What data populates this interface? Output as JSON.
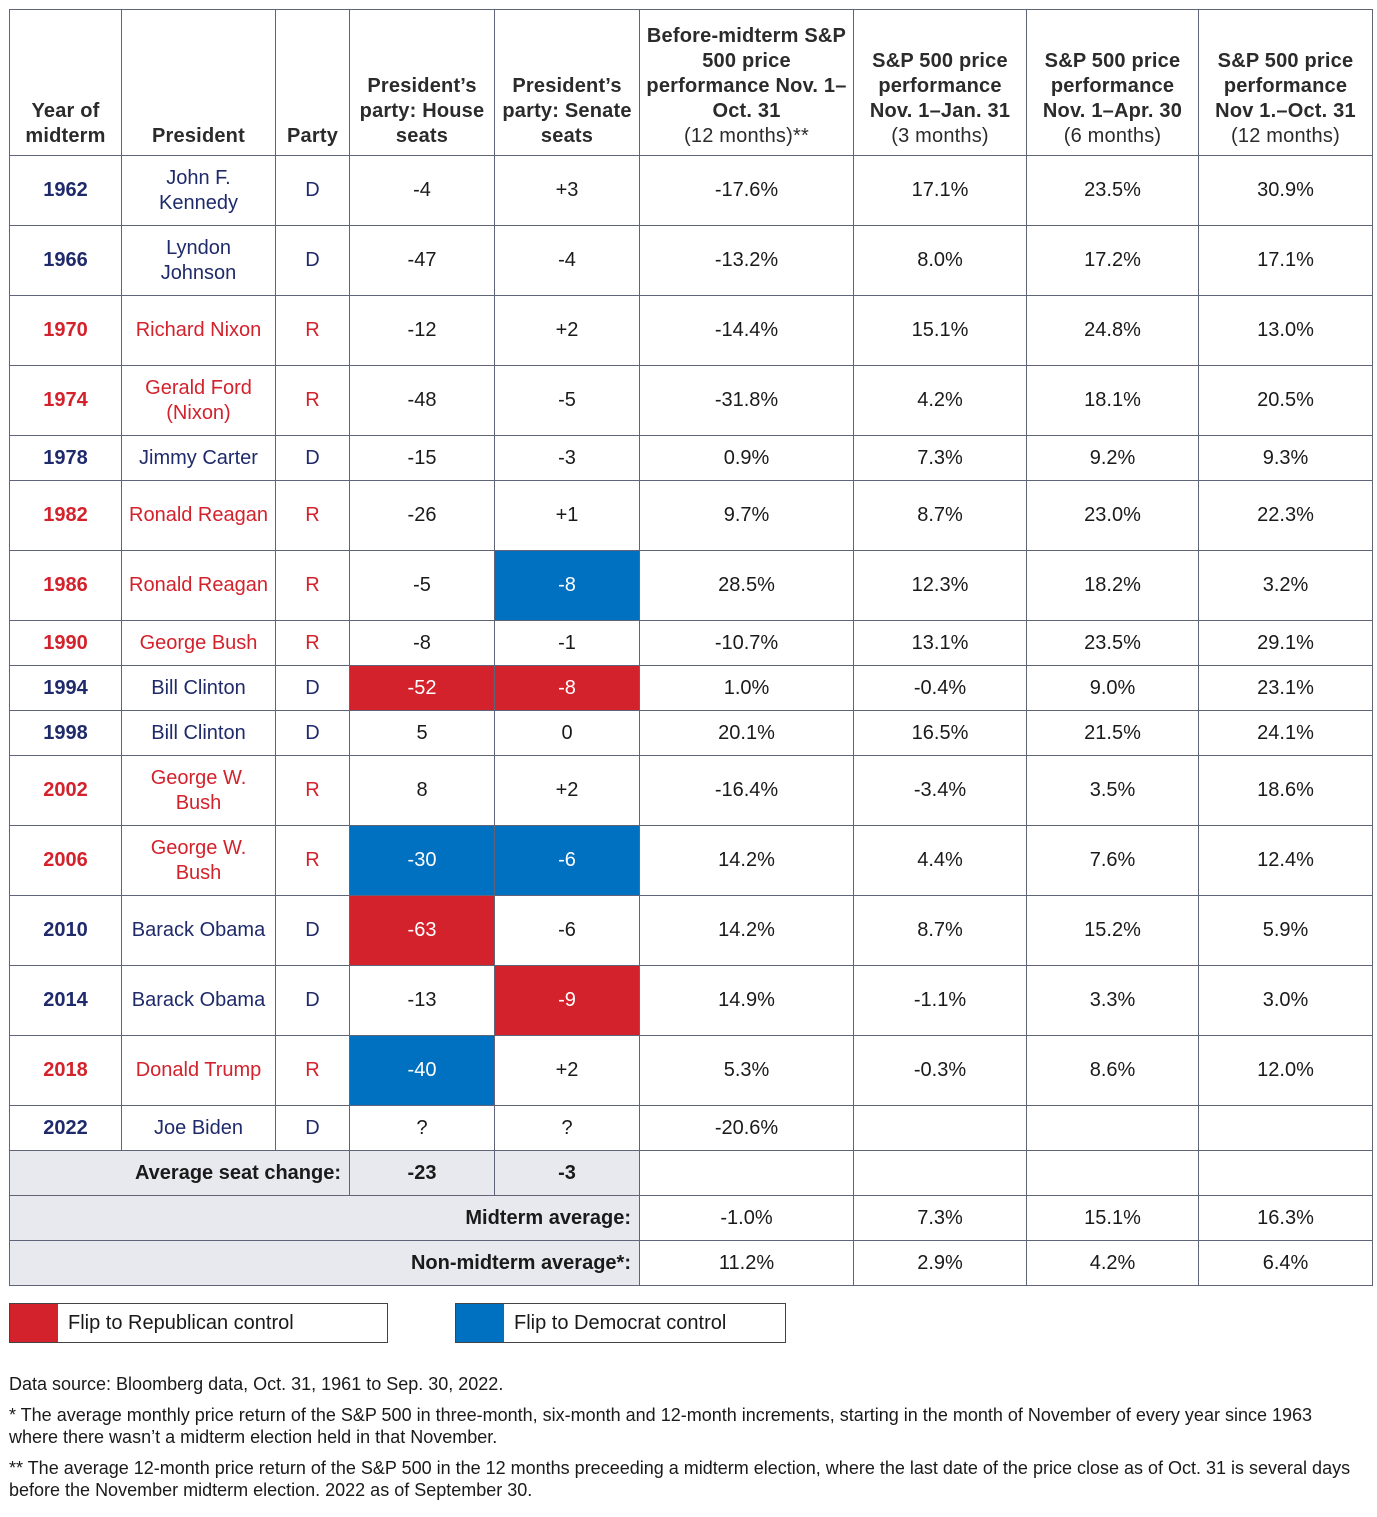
{
  "party_colors": {
    "D": "#1f2a6b",
    "R": "#d3222c"
  },
  "table": {
    "header": [
      {
        "title": "Year of midterm"
      },
      {
        "title": "President"
      },
      {
        "title": "Party"
      },
      {
        "title": "President’s party: House seats"
      },
      {
        "title": "President’s party: Senate seats"
      },
      {
        "title": "Before-midterm S&P 500 price performance Nov. 1–Oct. 31",
        "subtitle": "(12 months)**"
      },
      {
        "title": "S&P 500 price performance Nov. 1–Jan. 31",
        "subtitle": "(3 months)"
      },
      {
        "title": "S&P 500 price performance Nov. 1–Apr. 30",
        "subtitle": "(6 months)"
      },
      {
        "title": "S&P 500 price performance Nov 1.–Oct. 31",
        "subtitle": "(12 months)"
      }
    ],
    "rows": [
      {
        "year": "1962",
        "president": "John F. Kennedy",
        "party": "D",
        "house": "-4",
        "senate": "+3",
        "before": "-17.6%",
        "m3": "17.1%",
        "m6": "23.5%",
        "m12": "30.9%"
      },
      {
        "year": "1966",
        "president": "Lyndon Johnson",
        "party": "D",
        "house": "-47",
        "senate": "-4",
        "before": "-13.2%",
        "m3": "8.0%",
        "m6": "17.2%",
        "m12": "17.1%"
      },
      {
        "year": "1970",
        "president": "Richard Nixon",
        "party": "R",
        "house": "-12",
        "senate": "+2",
        "before": "-14.4%",
        "m3": "15.1%",
        "m6": "24.8%",
        "m12": "13.0%"
      },
      {
        "year": "1974",
        "president": "Gerald Ford (Nixon)",
        "party": "R",
        "house": "-48",
        "senate": "-5",
        "before": "-31.8%",
        "m3": "4.2%",
        "m6": "18.1%",
        "m12": "20.5%"
      },
      {
        "year": "1978",
        "president": "Jimmy Carter",
        "party": "D",
        "house": "-15",
        "senate": "-3",
        "before": "0.9%",
        "m3": "7.3%",
        "m6": "9.2%",
        "m12": "9.3%"
      },
      {
        "year": "1982",
        "president": "Ronald Reagan",
        "party": "R",
        "house": "-26",
        "senate": "+1",
        "before": "9.7%",
        "m3": "8.7%",
        "m6": "23.0%",
        "m12": "22.3%"
      },
      {
        "year": "1986",
        "president": "Ronald Reagan",
        "party": "R",
        "house": "-5",
        "senate": "-8",
        "senate_color": "#0070c0",
        "before": "28.5%",
        "m3": "12.3%",
        "m6": "18.2%",
        "m12": "3.2%"
      },
      {
        "year": "1990",
        "president": "George Bush",
        "party": "R",
        "house": "-8",
        "senate": "-1",
        "before": "-10.7%",
        "m3": "13.1%",
        "m6": "23.5%",
        "m12": "29.1%"
      },
      {
        "year": "1994",
        "president": "Bill Clinton",
        "party": "D",
        "house": "-52",
        "house_color": "#d3222c",
        "senate": "-8",
        "senate_color": "#d3222c",
        "before": "1.0%",
        "m3": "-0.4%",
        "m6": "9.0%",
        "m12": "23.1%"
      },
      {
        "year": "1998",
        "president": "Bill Clinton",
        "party": "D",
        "house": "5",
        "senate": "0",
        "before": "20.1%",
        "m3": "16.5%",
        "m6": "21.5%",
        "m12": "24.1%"
      },
      {
        "year": "2002",
        "president": "George W. Bush",
        "party": "R",
        "house": "8",
        "senate": "+2",
        "before": "-16.4%",
        "m3": "-3.4%",
        "m6": "3.5%",
        "m12": "18.6%"
      },
      {
        "year": "2006",
        "president": "George W. Bush",
        "party": "R",
        "house": "-30",
        "house_color": "#0070c0",
        "senate": "-6",
        "senate_color": "#0070c0",
        "before": "14.2%",
        "m3": "4.4%",
        "m6": "7.6%",
        "m12": "12.4%"
      },
      {
        "year": "2010",
        "president": "Barack Obama",
        "party": "D",
        "house": "-63",
        "house_color": "#d3222c",
        "senate": "-6",
        "before": "14.2%",
        "m3": "8.7%",
        "m6": "15.2%",
        "m12": "5.9%"
      },
      {
        "year": "2014",
        "president": "Barack Obama",
        "party": "D",
        "house": "-13",
        "senate": "-9",
        "senate_color": "#d3222c",
        "before": "14.9%",
        "m3": "-1.1%",
        "m6": "3.3%",
        "m12": "3.0%"
      },
      {
        "year": "2018",
        "president": "Donald Trump",
        "party": "R",
        "house": "-40",
        "house_color": "#0070c0",
        "senate": "+2",
        "before": "5.3%",
        "m3": "-0.3%",
        "m6": "8.6%",
        "m12": "12.0%"
      },
      {
        "year": "2022",
        "president": "Joe Biden",
        "party": "D",
        "house": "?",
        "senate": "?",
        "before": "-20.6%",
        "m3": null,
        "m6": null,
        "m12": null
      }
    ],
    "average_seat_change": {
      "label": "Average seat change:",
      "house": "-23",
      "senate": "-3"
    },
    "averages": [
      {
        "label": "Midterm average:",
        "values": [
          "-1.0%",
          "7.3%",
          "15.1%",
          "16.3%"
        ]
      },
      {
        "label": "Non-midterm average*:",
        "values": [
          "11.2%",
          "2.9%",
          "4.2%",
          "6.4%"
        ]
      }
    ]
  },
  "legend": [
    {
      "label": "Flip to Republican control",
      "color": "#d3222c"
    },
    {
      "label": "Flip to Democrat control",
      "color": "#0070c0"
    }
  ],
  "notes": [
    "Data source: Bloomberg data, Oct. 31, 1961 to Sep. 30, 2022.",
    "* The average monthly price return of the S&P 500 in three-month, six-month and 12-month increments, starting in the month of November of every year since 1963 where there wasn’t a midterm election held in that November.",
    "** The average 12-month price return of the S&P 500 in the 12 months preceeding a midterm election, where the last date of the price close as of Oct. 31 is several days before the November midterm election. 2022 as of September 30."
  ]
}
